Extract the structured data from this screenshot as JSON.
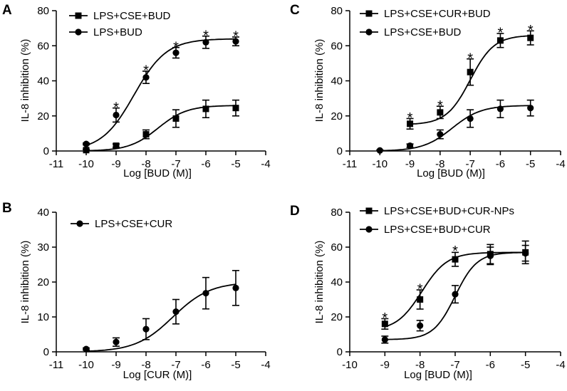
{
  "figure": {
    "colors": {
      "ink": "#000000",
      "background": "#ffffff"
    }
  },
  "chart_data": [
    {
      "panel": "A",
      "type": "line",
      "xlabel": "Log [BUD (M)]",
      "ylabel": "IL-8 inhibition (%)",
      "xlim": [
        -11,
        -4
      ],
      "ylim": [
        0,
        80
      ],
      "xticks": [
        -11,
        -10,
        -9,
        -8,
        -7,
        -6,
        -5,
        -4
      ],
      "yticks": [
        0,
        20,
        40,
        60,
        80
      ],
      "legend_position": "top-left",
      "series": [
        {
          "name": "LPS+CSE+BUD",
          "marker": "square",
          "x": [
            -10,
            -9,
            -8,
            -7,
            -6,
            -5
          ],
          "y": [
            0.5,
            3,
            9.5,
            18.5,
            24,
            24.5
          ],
          "err": [
            0.5,
            1,
            2.5,
            5,
            5,
            4.5
          ],
          "curve": {
            "bottom": 0,
            "top": 26,
            "ec50": -7.6,
            "hill": 0.9
          }
        },
        {
          "name": "LPS+BUD",
          "marker": "circle",
          "x": [
            -10,
            -9,
            -8,
            -7,
            -6,
            -5
          ],
          "y": [
            4,
            20.5,
            42,
            56,
            62,
            62.5
          ],
          "err": [
            0.5,
            4,
            3.5,
            3,
            3.5,
            2.5
          ],
          "curve": {
            "bottom": 0,
            "top": 64,
            "ec50": -8.4,
            "hill": 0.8
          }
        }
      ],
      "annotations": [
        {
          "label": "*",
          "x": -9,
          "y": 25.8
        },
        {
          "label": "*",
          "x": -8,
          "y": 46.9
        },
        {
          "label": "*",
          "x": -7,
          "y": 60.4
        },
        {
          "label": "*",
          "x": -6,
          "y": 66.9
        },
        {
          "label": "*",
          "x": -5,
          "y": 66.4
        }
      ]
    },
    {
      "panel": "B",
      "type": "line",
      "xlabel": "Log [CUR (M)]",
      "ylabel": "IL-8 inhibition (%)",
      "xlim": [
        -11,
        -4
      ],
      "ylim": [
        0,
        40
      ],
      "xticks": [
        -11,
        -10,
        -9,
        -8,
        -7,
        -6,
        -5,
        -4
      ],
      "yticks": [
        0,
        10,
        20,
        30,
        40
      ],
      "legend_position": "top-left",
      "series": [
        {
          "name": "LPS+CSE+CUR",
          "marker": "circle",
          "x": [
            -10,
            -9,
            -8,
            -7,
            -6,
            -5
          ],
          "y": [
            0.8,
            2.8,
            6.5,
            11.5,
            16.8,
            18.3
          ],
          "err": [
            0.3,
            1.2,
            3,
            3.5,
            4.5,
            5
          ],
          "curve": {
            "bottom": 0,
            "top": 20,
            "ec50": -7.1,
            "hill": 0.7
          }
        }
      ],
      "annotations": []
    },
    {
      "panel": "C",
      "type": "line",
      "xlabel": "Log [BUD (M)]",
      "ylabel": "IL-8 inhibition (%)",
      "xlim": [
        -11,
        -4
      ],
      "ylim": [
        0,
        80
      ],
      "xticks": [
        -11,
        -10,
        -9,
        -8,
        -7,
        -6,
        -5,
        -4
      ],
      "yticks": [
        0,
        20,
        40,
        60,
        80
      ],
      "legend_position": "top-left",
      "series": [
        {
          "name": "LPS+CSE+CUR+BUD",
          "marker": "square",
          "x": [
            -9,
            -8,
            -7,
            -6,
            -5
          ],
          "y": [
            15.5,
            22,
            45,
            63,
            64.5
          ],
          "err": [
            3,
            3.5,
            7.5,
            4,
            4
          ],
          "curve": {
            "bottom": 15,
            "top": 66,
            "ec50": -7.0,
            "hill": 1.1
          }
        },
        {
          "name": "LPS+CSE+BUD",
          "marker": "circle",
          "x": [
            -10,
            -9,
            -8,
            -7,
            -6,
            -5
          ],
          "y": [
            0.3,
            3,
            9.5,
            18.5,
            24,
            24.5
          ],
          "err": [
            0.3,
            1,
            2.5,
            5,
            5,
            4.5
          ],
          "curve": {
            "bottom": 0,
            "top": 26,
            "ec50": -7.6,
            "hill": 0.9
          }
        }
      ],
      "annotations": [
        {
          "label": "*",
          "x": -9,
          "y": 19.9
        },
        {
          "label": "*",
          "x": -8,
          "y": 26.9
        },
        {
          "label": "*",
          "x": -7,
          "y": 53.9
        },
        {
          "label": "*",
          "x": -6,
          "y": 68.4
        },
        {
          "label": "*",
          "x": -5,
          "y": 69.9
        }
      ]
    },
    {
      "panel": "D",
      "type": "line",
      "xlabel": "Log [BUD (M)]",
      "ylabel": "IL-8 inhibition (%)",
      "xlim": [
        -10,
        -4
      ],
      "ylim": [
        0,
        80
      ],
      "xticks": [
        -10,
        -9,
        -8,
        -7,
        -6,
        -5,
        -4
      ],
      "yticks": [
        0,
        20,
        40,
        60,
        80
      ],
      "legend_position": "top-left",
      "series": [
        {
          "name": "LPS+CSE+BUD+CUR-NPs",
          "marker": "square",
          "x": [
            -9,
            -8,
            -7,
            -6,
            -5
          ],
          "y": [
            16,
            30,
            53,
            56,
            57
          ],
          "err": [
            3,
            5.5,
            4,
            5.5,
            6.5
          ],
          "curve": {
            "bottom": 12,
            "top": 57,
            "ec50": -7.95,
            "hill": 1.2
          }
        },
        {
          "name": "LPS+CSE+BUD+CUR",
          "marker": "circle",
          "x": [
            -9,
            -8,
            -7,
            -6,
            -5
          ],
          "y": [
            7,
            15,
            33,
            55,
            56.5
          ],
          "err": [
            2,
            3,
            5,
            5,
            4.5
          ],
          "curve": {
            "bottom": 7,
            "top": 57,
            "ec50": -7.0,
            "hill": 1.4
          }
        }
      ],
      "annotations": [
        {
          "label": "*",
          "x": -9,
          "y": 20.5
        },
        {
          "label": "*",
          "x": -8,
          "y": 37
        },
        {
          "label": "*",
          "x": -7,
          "y": 58.8
        }
      ]
    }
  ]
}
